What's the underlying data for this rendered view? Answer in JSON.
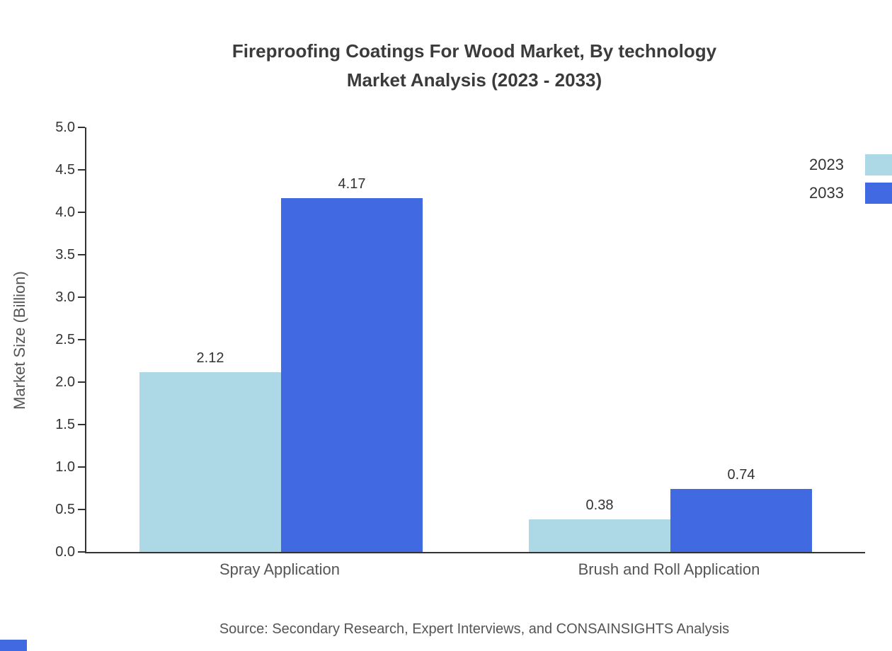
{
  "title": {
    "line1": "Fireproofing Coatings For Wood Market, By technology",
    "line2": "Market Analysis (2023 - 2033)"
  },
  "chart_data": {
    "type": "bar",
    "categories": [
      "Spray Application",
      "Brush and Roll Application"
    ],
    "series": [
      {
        "name": "2023",
        "color": "#add8e6",
        "values": [
          2.12,
          0.38
        ]
      },
      {
        "name": "2033",
        "color": "#4169e1",
        "values": [
          4.17,
          0.74
        ]
      }
    ],
    "value_labels": [
      [
        "2.12",
        "0.38"
      ],
      [
        "4.17",
        "0.74"
      ]
    ],
    "ylabel": "Market Size (Billion)",
    "ylim": [
      0,
      5
    ],
    "ytick_step": 0.5,
    "grid": false,
    "legend_position": "top-right"
  },
  "source": "Source: Secondary Research, Expert Interviews, and CONSAINSIGHTS Analysis",
  "accent_color": "#4169e1"
}
